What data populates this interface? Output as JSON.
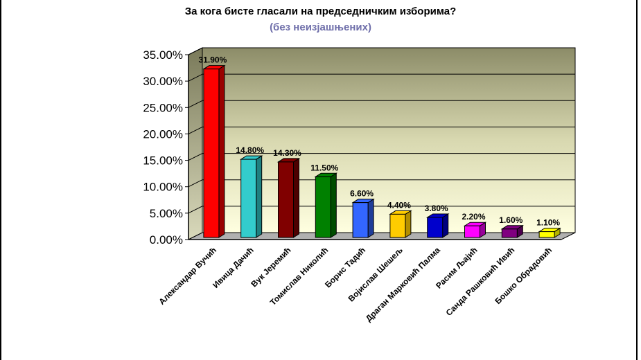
{
  "chart_data": {
    "type": "bar",
    "title": "За кога бисте гласали на председничким изборима?",
    "subtitle": "(без неизјашњених)",
    "categories": [
      "Александар Вучић",
      "Ивица Дачић",
      "Вук Јеремић",
      "Томислав Николић",
      "Борис Тадић",
      "Војислав Шешељ",
      "Драган Марковић Палма",
      "Расим Љајић",
      "Санда Рашковић Ивић",
      "Бошко Обрадовић"
    ],
    "values": [
      31.9,
      14.8,
      14.3,
      11.5,
      6.6,
      4.4,
      3.8,
      2.2,
      1.6,
      1.1
    ],
    "data_labels": [
      "31.90%",
      "14.80%",
      "14.30%",
      "11.50%",
      "6.60%",
      "4.40%",
      "3.80%",
      "2.20%",
      "1.60%",
      "1.10%"
    ],
    "yticks": [
      "0.00%",
      "5.00%",
      "10.00%",
      "15.00%",
      "20.00%",
      "25.00%",
      "30.00%",
      "35.00%"
    ],
    "ylim": [
      0,
      35
    ],
    "grid": true,
    "colors": [
      "#ff0000",
      "#33cccc",
      "#800000",
      "#008000",
      "#3366ff",
      "#ffcc00",
      "#0000cc",
      "#ff00ff",
      "#800080",
      "#ffff00"
    ],
    "sides": [
      "#990000",
      "#1f8080",
      "#4d0000",
      "#004d00",
      "#1f3d99",
      "#b38f00",
      "#000080",
      "#990099",
      "#4d004d",
      "#b3b300"
    ]
  }
}
